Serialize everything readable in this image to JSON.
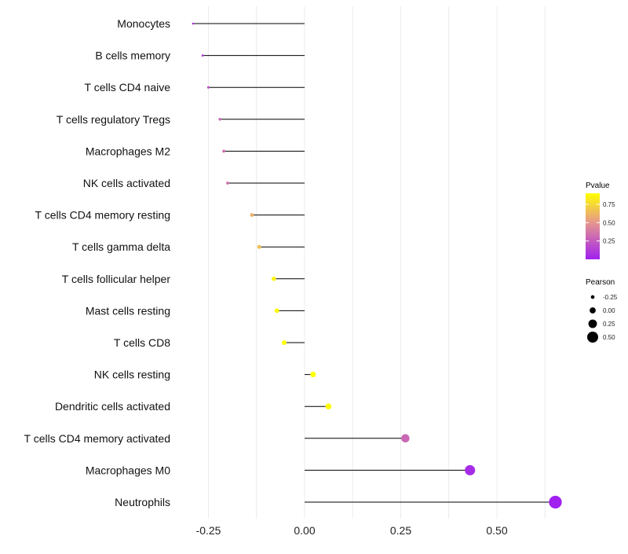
{
  "chart_data": {
    "type": "lollipop",
    "title": "",
    "xlabel": "",
    "ylabel": "",
    "xlim": [
      -0.3,
      0.65
    ],
    "x_ticks": [
      {
        "value": -0.25,
        "label": "-0.25"
      },
      {
        "value": 0.0,
        "label": "0.00"
      },
      {
        "value": 0.25,
        "label": "0.25"
      },
      {
        "value": 0.5,
        "label": "0.50"
      }
    ],
    "grid": true,
    "categories": [
      "Monocytes",
      "B cells memory",
      "T cells CD4 naive",
      "T cells regulatory  Tregs ",
      "Macrophages M2",
      "NK cells activated",
      "T cells CD4 memory resting",
      "T cells gamma delta",
      "T cells follicular helper",
      "Mast cells resting",
      "T cells CD8",
      "NK cells resting",
      "Dendritic cells activated",
      "T cells CD4 memory activated",
      "Macrophages M0",
      "Neutrophils"
    ],
    "pearson": [
      -0.29,
      -0.265,
      -0.25,
      -0.22,
      -0.21,
      -0.2,
      -0.137,
      -0.118,
      -0.08,
      -0.072,
      -0.053,
      0.022,
      0.062,
      0.262,
      0.43,
      0.652
    ],
    "pvalue": [
      0.05,
      0.15,
      0.2,
      0.3,
      0.32,
      0.35,
      0.6,
      0.65,
      0.85,
      0.87,
      0.92,
      0.98,
      0.88,
      0.3,
      0.05,
      0.001
    ],
    "legend_color": {
      "title": "Pvalue",
      "ticks": [
        {
          "value": 0.25,
          "label": "0.25"
        },
        {
          "value": 0.5,
          "label": "0.50"
        },
        {
          "value": 0.75,
          "label": "0.75"
        }
      ],
      "range": [
        0.0,
        0.9
      ],
      "low_color": "#a020f0",
      "mid_color": "#e6958f",
      "high_color": "#ffff00"
    },
    "legend_size": {
      "title": "Pearson",
      "entries": [
        {
          "value": -0.25,
          "label": "-0.25"
        },
        {
          "value": 0.0,
          "label": "0.00"
        },
        {
          "value": 0.25,
          "label": "0.25"
        },
        {
          "value": 0.5,
          "label": "0.50"
        }
      ]
    },
    "legend_position": "right",
    "line_color": "#000000",
    "grid_color": "#ececec"
  }
}
